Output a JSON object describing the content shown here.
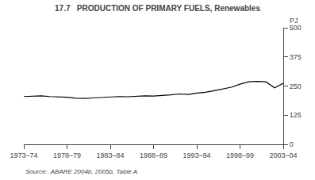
{
  "chart_data": {
    "type": "line",
    "title": "17.7   PRODUCTION OF PRIMARY FUELS, Renewables",
    "ylabel": "PJ",
    "annotations": [
      "Source:  ABARE 2004b, 2005b, Table A."
    ],
    "categories": [
      "1973–74",
      null,
      null,
      null,
      null,
      "1978–79",
      null,
      null,
      null,
      null,
      "1983–84",
      null,
      null,
      null,
      null,
      "1988–89",
      null,
      null,
      null,
      null,
      "1993–94",
      null,
      null,
      null,
      null,
      "1998–99",
      null,
      null,
      null,
      null,
      "2003–04"
    ],
    "values": [
      205,
      207,
      208,
      205,
      204,
      202,
      198,
      197,
      199,
      201,
      203,
      205,
      204,
      206,
      208,
      207,
      209,
      212,
      216,
      214,
      220,
      223,
      230,
      237,
      245,
      258,
      268,
      270,
      268,
      242,
      262
    ],
    "color": "#000000",
    "ylim": [
      0,
      500
    ],
    "yticks": [
      0,
      125,
      250,
      375,
      500
    ],
    "grid": false
  }
}
